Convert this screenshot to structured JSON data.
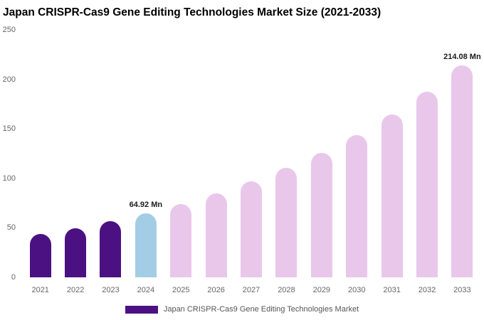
{
  "title": "Japan CRISPR-Cas9 Gene Editing Technologies Market Size (2021-2033)",
  "legend": {
    "label": "Japan CRISPR-Cas9 Gene Editing Technologies Market",
    "swatch_color": "#4b1182"
  },
  "chart_data": {
    "type": "bar",
    "title": "Japan CRISPR-Cas9 Gene Editing Technologies Market Size (2021-2033)",
    "unit": "Mn",
    "categories": [
      "2021",
      "2022",
      "2023",
      "2024",
      "2025",
      "2026",
      "2027",
      "2028",
      "2029",
      "2030",
      "2031",
      "2032",
      "2033"
    ],
    "values": [
      43.6,
      49.8,
      56.9,
      64.92,
      74.1,
      84.7,
      96.7,
      110.4,
      126.0,
      143.9,
      164.3,
      187.6,
      214.08
    ],
    "bar_colors": [
      "#4b1182",
      "#4b1182",
      "#4b1182",
      "#a3cde5",
      "#e9c7eb",
      "#e9c7eb",
      "#e9c7eb",
      "#e9c7eb",
      "#e9c7eb",
      "#e9c7eb",
      "#e9c7eb",
      "#e9c7eb",
      "#e9c7eb"
    ],
    "color_meaning": {
      "historical": "#4b1182",
      "current_year": "#a3cde5",
      "forecast": "#e9c7eb"
    },
    "annotations": [
      {
        "category": "2024",
        "text": "64.92 Mn"
      },
      {
        "category": "2033",
        "text": "214.08 Mn"
      }
    ],
    "xlabel": "",
    "ylabel": "",
    "ylim": [
      0,
      250
    ],
    "yticks": [
      0,
      50,
      100,
      150,
      200,
      250
    ],
    "grid": false,
    "legend_position": "bottom"
  }
}
